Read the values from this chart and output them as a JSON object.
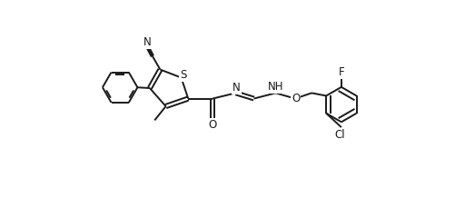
{
  "bg_color": "#ffffff",
  "line_color": "#1a1a1a",
  "line_width": 1.4,
  "fig_width": 5.02,
  "fig_height": 2.18,
  "dpi": 100,
  "xlim": [
    0,
    10.04
  ],
  "ylim": [
    0,
    4.36
  ]
}
